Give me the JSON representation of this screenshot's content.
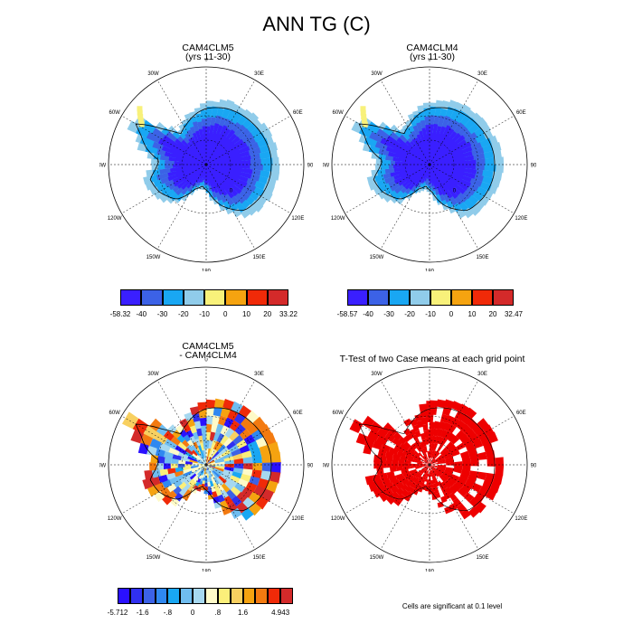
{
  "title": "ANN TG (C)",
  "lon_labels": [
    "0",
    "30E",
    "60E",
    "90E",
    "120E",
    "150E",
    "180",
    "150W",
    "120W",
    "90W",
    "60W",
    "30W"
  ],
  "panels": [
    {
      "title": "CAM4CLM5",
      "subtitle": "(yrs 11-30)"
    },
    {
      "title": "CAM4CLM4",
      "subtitle": "(yrs 11-30)"
    },
    {
      "title": "CAM4CLM5",
      "subtitle": "- CAM4CLM4"
    },
    {
      "title": "T-Test of two Case means at each grid point",
      "subtitle": ""
    }
  ],
  "colorbars": [
    {
      "colors": [
        "#3a1fff",
        "#3c62e6",
        "#19a7f3",
        "#90ccea",
        "#f8f17a",
        "#f5a310",
        "#f02a08",
        "#d42a2a"
      ],
      "labels": [
        "-58.32",
        "-40",
        "-30",
        "-20",
        "-10",
        "0",
        "10",
        "20",
        "33.22"
      ]
    },
    {
      "colors": [
        "#3a1fff",
        "#3c62e6",
        "#19a7f3",
        "#90ccea",
        "#f8f17a",
        "#f5a310",
        "#f02a08",
        "#d42a2a"
      ],
      "labels": [
        "-58.57",
        "-40",
        "-30",
        "-20",
        "-10",
        "0",
        "10",
        "20",
        "32.47"
      ]
    },
    {
      "colors": [
        "#2a10ff",
        "#3030f0",
        "#3c62e6",
        "#2f88f0",
        "#19a7f3",
        "#6fbdf0",
        "#a6d8f0",
        "#fefac8",
        "#fbef7a",
        "#f8d060",
        "#f5a310",
        "#f37a10",
        "#f02a08",
        "#d42a2a"
      ],
      "labels": [
        "-5.712",
        "",
        "-1.6",
        "",
        "-.8",
        "",
        "0",
        "",
        ".8",
        "",
        "1.6",
        "",
        "",
        "4.943"
      ]
    }
  ],
  "footnote": "Cells are significant at 0.1 level",
  "contour_label": "0"
}
